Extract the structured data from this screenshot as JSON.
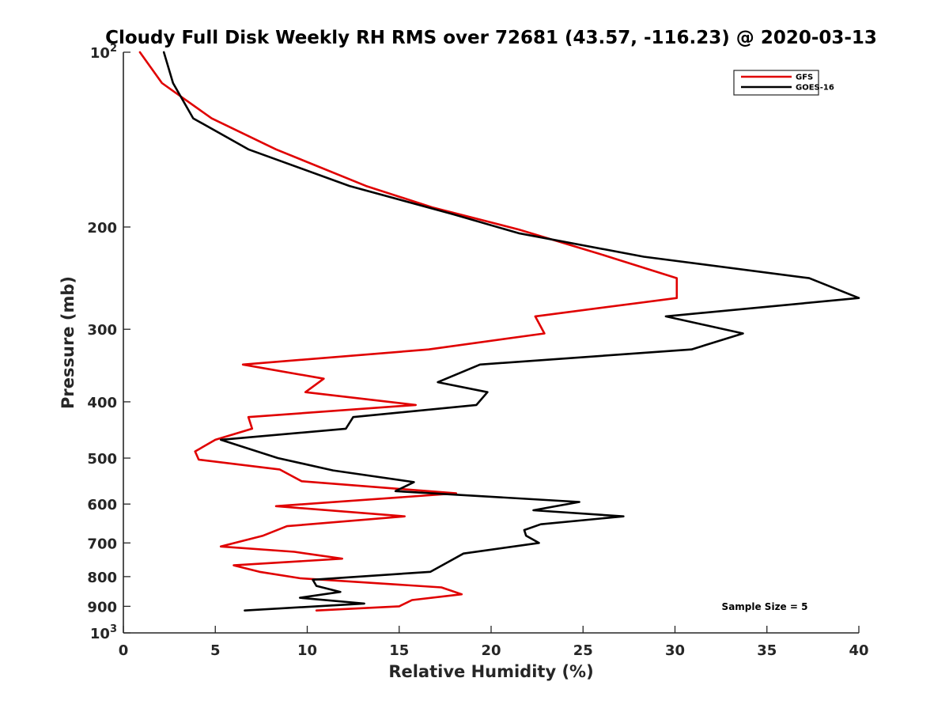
{
  "chart_data": {
    "type": "line",
    "title": "Cloudy Full Disk Weekly RH RMS over 72681 (43.57, -116.23) @ 2020-03-13",
    "xlabel": "Relative Humidity (%)",
    "ylabel": "Pressure (mb)",
    "xlim": [
      0,
      40
    ],
    "ylim": [
      100,
      1000
    ],
    "yscale": "log",
    "y_reversed": true,
    "grid": false,
    "legend_position": "top-right",
    "x_ticks": [
      0,
      5,
      10,
      15,
      20,
      25,
      30,
      35,
      40
    ],
    "x_tick_labels": [
      "0",
      "5",
      "10",
      "15",
      "20",
      "25",
      "30",
      "35",
      "40"
    ],
    "y_ticks": [
      100,
      200,
      300,
      400,
      500,
      600,
      700,
      800,
      900,
      1000
    ],
    "y_tick_labels": [
      {
        "base": "10",
        "exp": "2"
      },
      {
        "base": "200",
        "exp": ""
      },
      {
        "base": "300",
        "exp": ""
      },
      {
        "base": "400",
        "exp": ""
      },
      {
        "base": "500",
        "exp": ""
      },
      {
        "base": "600",
        "exp": ""
      },
      {
        "base": "700",
        "exp": ""
      },
      {
        "base": "800",
        "exp": ""
      },
      {
        "base": "900",
        "exp": ""
      },
      {
        "base": "10",
        "exp": "3"
      }
    ],
    "annotation": "Sample Size = 5",
    "series": [
      {
        "name": "GFS",
        "color": "#e00000",
        "x": [
          0.9,
          2.1,
          4.8,
          8.3,
          13.2,
          16.8,
          21.5,
          25.8,
          30.1,
          30.1,
          22.4,
          22.9,
          16.6,
          6.5,
          10.9,
          9.9,
          15.9,
          6.8,
          7.0,
          5.0,
          3.9,
          4.1,
          8.5,
          9.7,
          18.1,
          8.3,
          15.3,
          8.9,
          7.6,
          5.3,
          9.3,
          11.9,
          6.0,
          7.4,
          9.6,
          17.3,
          18.4,
          15.7,
          15.0,
          10.5
        ],
        "y": [
          100,
          113,
          130,
          147,
          170,
          185,
          202,
          222,
          245,
          265,
          285,
          305,
          325,
          345,
          365,
          385,
          405,
          425,
          445,
          465,
          487,
          503,
          523,
          548,
          575,
          605,
          630,
          655,
          680,
          710,
          725,
          745,
          765,
          785,
          805,
          835,
          858,
          878,
          900,
          915
        ]
      },
      {
        "name": "GOES-16",
        "color": "#000000",
        "x": [
          2.2,
          2.7,
          3.8,
          6.8,
          12.3,
          17.9,
          21.5,
          28.3,
          37.3,
          40.0,
          29.5,
          33.7,
          30.9,
          19.4,
          17.1,
          19.8,
          19.2,
          12.5,
          12.1,
          5.3,
          8.4,
          11.4,
          15.8,
          14.8,
          24.8,
          22.3,
          27.2,
          22.7,
          21.8,
          21.9,
          22.6,
          18.5,
          17.5,
          16.7,
          10.3,
          10.5,
          11.8,
          9.6,
          13.1,
          6.6
        ],
        "y": [
          100,
          113,
          130,
          147,
          170,
          190,
          205,
          225,
          245,
          265,
          285,
          305,
          325,
          345,
          370,
          385,
          405,
          425,
          445,
          465,
          500,
          525,
          550,
          570,
          595,
          615,
          630,
          650,
          665,
          680,
          700,
          730,
          760,
          785,
          810,
          830,
          850,
          870,
          890,
          915
        ]
      }
    ]
  }
}
